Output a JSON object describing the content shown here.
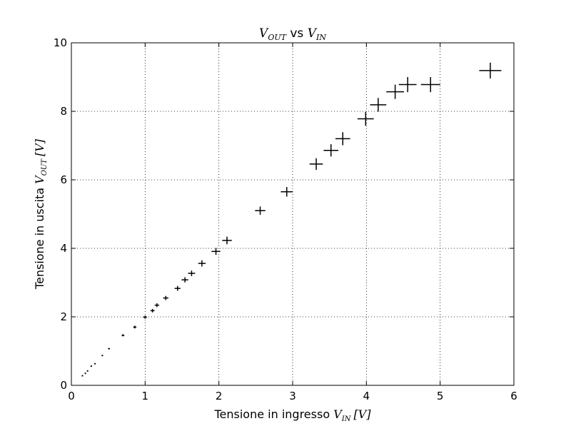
{
  "chart_data": {
    "type": "scatter",
    "title": {
      "main": "V",
      "main_sub": "OUT",
      "mid": " vs ",
      "var": "V",
      "var_sub": "IN"
    },
    "xlabel": {
      "text": "Tensione in ingresso ",
      "var": "V",
      "sub": "IN",
      "unit": "[V]"
    },
    "ylabel": {
      "text": "Tensione in uscita ",
      "var": "V",
      "sub": "OUT",
      "unit": "[V]"
    },
    "xlim": [
      0,
      6
    ],
    "ylim": [
      0,
      10
    ],
    "xticks": [
      "0",
      "1",
      "2",
      "3",
      "4",
      "5",
      "6"
    ],
    "yticks": [
      "0",
      "2",
      "4",
      "6",
      "8",
      "10"
    ],
    "grid": true,
    "marker": "error-cross",
    "points": [
      {
        "x": 0.15,
        "y": 0.28,
        "xerr": 0.005,
        "yerr": 0.01
      },
      {
        "x": 0.19,
        "y": 0.35,
        "xerr": 0.005,
        "yerr": 0.01
      },
      {
        "x": 0.22,
        "y": 0.42,
        "xerr": 0.005,
        "yerr": 0.01
      },
      {
        "x": 0.27,
        "y": 0.56,
        "xerr": 0.006,
        "yerr": 0.012
      },
      {
        "x": 0.32,
        "y": 0.63,
        "xerr": 0.007,
        "yerr": 0.013
      },
      {
        "x": 0.42,
        "y": 0.87,
        "xerr": 0.01,
        "yerr": 0.02
      },
      {
        "x": 0.51,
        "y": 1.07,
        "xerr": 0.012,
        "yerr": 0.022
      },
      {
        "x": 0.7,
        "y": 1.46,
        "xerr": 0.018,
        "yerr": 0.03
      },
      {
        "x": 0.86,
        "y": 1.7,
        "xerr": 0.022,
        "yerr": 0.04
      },
      {
        "x": 1.0,
        "y": 1.99,
        "xerr": 0.025,
        "yerr": 0.045
      },
      {
        "x": 1.1,
        "y": 2.18,
        "xerr": 0.028,
        "yerr": 0.05
      },
      {
        "x": 1.16,
        "y": 2.34,
        "xerr": 0.03,
        "yerr": 0.055
      },
      {
        "x": 1.28,
        "y": 2.55,
        "xerr": 0.035,
        "yerr": 0.06
      },
      {
        "x": 1.44,
        "y": 2.83,
        "xerr": 0.04,
        "yerr": 0.07
      },
      {
        "x": 1.54,
        "y": 3.08,
        "xerr": 0.045,
        "yerr": 0.075
      },
      {
        "x": 1.63,
        "y": 3.27,
        "xerr": 0.048,
        "yerr": 0.08
      },
      {
        "x": 1.77,
        "y": 3.56,
        "xerr": 0.05,
        "yerr": 0.09
      },
      {
        "x": 1.96,
        "y": 3.91,
        "xerr": 0.06,
        "yerr": 0.1
      },
      {
        "x": 2.11,
        "y": 4.23,
        "xerr": 0.065,
        "yerr": 0.11
      },
      {
        "x": 2.56,
        "y": 5.1,
        "xerr": 0.07,
        "yerr": 0.12
      },
      {
        "x": 2.92,
        "y": 5.65,
        "xerr": 0.08,
        "yerr": 0.14
      },
      {
        "x": 3.32,
        "y": 6.46,
        "xerr": 0.09,
        "yerr": 0.17
      },
      {
        "x": 3.52,
        "y": 6.86,
        "xerr": 0.1,
        "yerr": 0.18
      },
      {
        "x": 3.68,
        "y": 7.2,
        "xerr": 0.1,
        "yerr": 0.19
      },
      {
        "x": 3.99,
        "y": 7.78,
        "xerr": 0.11,
        "yerr": 0.2
      },
      {
        "x": 4.16,
        "y": 8.19,
        "xerr": 0.11,
        "yerr": 0.2
      },
      {
        "x": 4.39,
        "y": 8.57,
        "xerr": 0.12,
        "yerr": 0.21
      },
      {
        "x": 4.56,
        "y": 8.78,
        "xerr": 0.12,
        "yerr": 0.22
      },
      {
        "x": 4.87,
        "y": 8.78,
        "xerr": 0.13,
        "yerr": 0.22
      },
      {
        "x": 5.68,
        "y": 9.19,
        "xerr": 0.15,
        "yerr": 0.23
      }
    ]
  }
}
